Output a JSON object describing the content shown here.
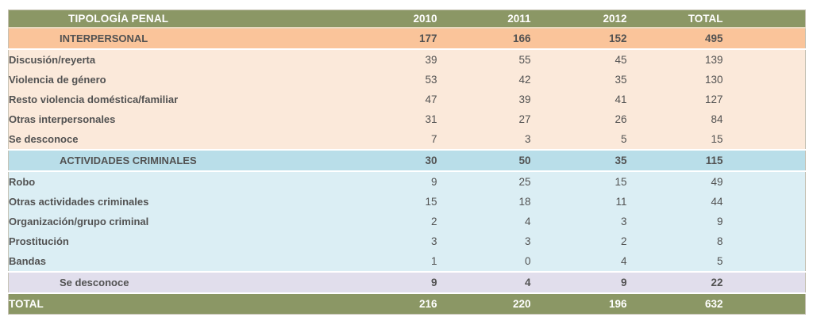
{
  "colors": {
    "olive": "#8B9765",
    "header_rule": "#E7D9BF",
    "orange_section": "#FAC49A",
    "orange_item": "#FBE9DA",
    "blue_section": "#B9DEE9",
    "blue_item": "#DBEEF4",
    "purple_section": "#E1DEEC",
    "text_dark": "#525252",
    "text_light": "#FFFFFF"
  },
  "chart_data": {
    "type": "table",
    "title": "TIPOLOGÍA PENAL",
    "columns": [
      "2010",
      "2011",
      "2012",
      "TOTAL"
    ],
    "rows": [
      {
        "label": "INTERPERSONAL",
        "style": "section-orange",
        "values": [
          177,
          166,
          152,
          495
        ]
      },
      {
        "label": "Discusión/reyerta",
        "style": "item-orange",
        "values": [
          39,
          55,
          45,
          139
        ]
      },
      {
        "label": "Violencia de género",
        "style": "item-orange",
        "values": [
          53,
          42,
          35,
          130
        ]
      },
      {
        "label": "Resto violencia doméstica/familiar",
        "style": "item-orange",
        "values": [
          47,
          39,
          41,
          127
        ]
      },
      {
        "label": "Otras interpersonales",
        "style": "item-orange",
        "values": [
          31,
          27,
          26,
          84
        ]
      },
      {
        "label": "Se desconoce",
        "style": "item-orange",
        "values": [
          7,
          3,
          5,
          15
        ]
      },
      {
        "label": "ACTIVIDADES CRIMINALES",
        "style": "section-blue",
        "values": [
          30,
          50,
          35,
          115
        ]
      },
      {
        "label": "Robo",
        "style": "item-blue",
        "values": [
          9,
          25,
          15,
          49
        ]
      },
      {
        "label": "Otras actividades criminales",
        "style": "item-blue",
        "values": [
          15,
          18,
          11,
          44
        ]
      },
      {
        "label": "Organización/grupo criminal",
        "style": "item-blue",
        "values": [
          2,
          4,
          3,
          9
        ]
      },
      {
        "label": "Prostitución",
        "style": "item-blue",
        "values": [
          3,
          3,
          2,
          8
        ]
      },
      {
        "label": "Bandas",
        "style": "item-blue",
        "values": [
          1,
          0,
          4,
          5
        ]
      },
      {
        "label": "Se desconoce",
        "style": "section-purple",
        "values": [
          9,
          4,
          9,
          22
        ]
      },
      {
        "label": "TOTAL",
        "style": "grand-total",
        "values": [
          216,
          220,
          196,
          632
        ]
      }
    ]
  }
}
